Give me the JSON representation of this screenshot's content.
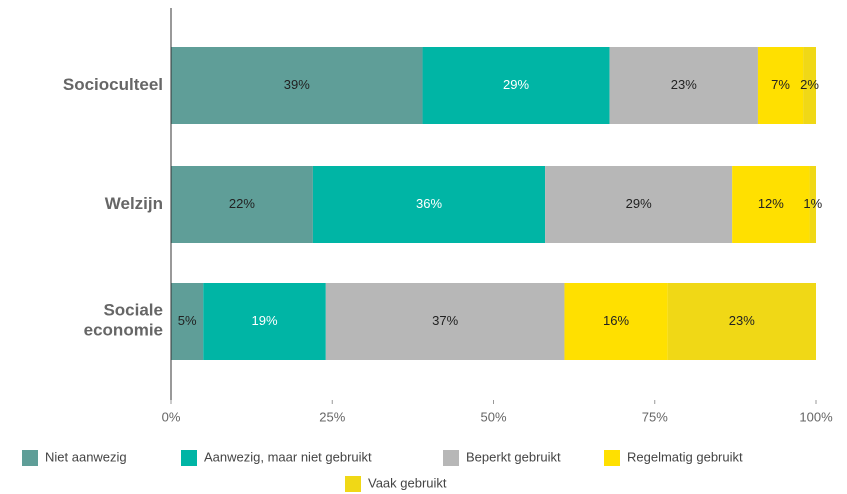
{
  "chart_data": {
    "type": "stacked_barh",
    "categories": [
      "Socioculteel",
      "Welzijn",
      "Sociale economie"
    ],
    "series": [
      {
        "name": "Niet aanwezig",
        "color": "#5f9e98",
        "values": [
          39,
          22,
          5
        ],
        "value_labels": [
          "39%",
          "22%",
          "5%"
        ]
      },
      {
        "name": "Aanwezig, maar niet gebruikt",
        "color": "#00b5a5",
        "values": [
          29,
          36,
          19
        ],
        "value_labels": [
          "29%",
          "36%",
          "19%"
        ]
      },
      {
        "name": "Beperkt gebruikt",
        "color": "#b7b7b7",
        "values": [
          23,
          29,
          37
        ],
        "value_labels": [
          "23%",
          "29%",
          "37%"
        ]
      },
      {
        "name": "Regelmatig gebruikt",
        "color": "#ffe000",
        "values": [
          7,
          12,
          16
        ],
        "value_labels": [
          "7%",
          "12%",
          "16%"
        ]
      },
      {
        "name": "Vaak gebruikt",
        "color": "#f0d816",
        "values": [
          2,
          1,
          23
        ],
        "value_labels": [
          "2%",
          "1%",
          "23%"
        ]
      }
    ],
    "xlim": [
      0,
      100
    ],
    "xticks": [
      {
        "value": 0,
        "label": "0%"
      },
      {
        "value": 25,
        "label": "25%"
      },
      {
        "value": 50,
        "label": "50%"
      },
      {
        "value": 75,
        "label": "75%"
      },
      {
        "value": 100,
        "label": "100%"
      }
    ],
    "legend": "bottom"
  }
}
